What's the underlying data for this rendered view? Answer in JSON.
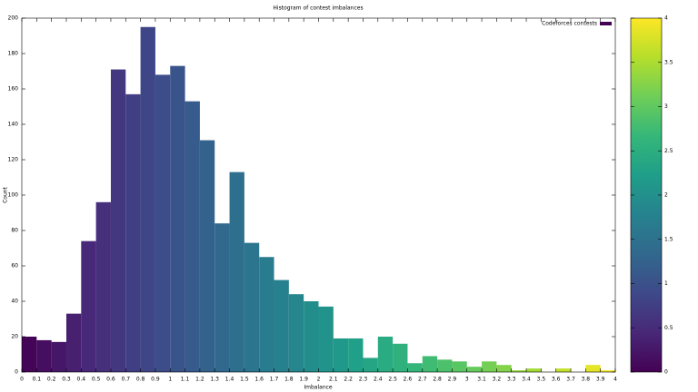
{
  "chart_data": {
    "type": "histogram",
    "title": "Histogram of contest imbalances",
    "x_label": "Imbalance",
    "y_label": "Count",
    "bins": [
      0,
      0.1,
      0.2,
      0.3,
      0.4,
      0.5,
      0.6,
      0.7,
      0.8,
      0.9,
      1,
      1.1,
      1.2,
      1.3,
      1.4,
      1.5,
      1.6,
      1.7,
      1.8,
      1.9,
      2,
      2.1,
      2.2,
      2.3,
      2.4,
      2.5,
      2.6,
      2.7,
      2.8,
      2.9,
      3,
      3.1,
      3.2,
      3.3,
      3.4,
      3.5,
      3.6,
      3.7,
      3.8,
      3.9,
      4
    ],
    "series": [
      {
        "name": "Codeforces contests",
        "color": "#440154",
        "values": [
          20,
          18,
          17,
          33,
          74,
          96,
          171,
          157,
          195,
          168,
          173,
          153,
          131,
          84,
          113,
          73,
          65,
          52,
          44,
          40,
          37,
          19,
          19,
          8,
          20,
          16,
          5,
          9,
          7,
          6,
          3,
          6,
          4,
          1,
          2,
          0,
          2,
          0,
          4,
          1
        ]
      }
    ],
    "xlim": [
      0,
      4
    ],
    "xticks": [
      0,
      0.1,
      0.2,
      0.3,
      0.4,
      0.5,
      0.6,
      0.7,
      0.8,
      0.9,
      1,
      1.1,
      1.2,
      1.3,
      1.4,
      1.5,
      1.6,
      1.7,
      1.8,
      1.9,
      2,
      2.1,
      2.2,
      2.3,
      2.4,
      2.5,
      2.6,
      2.7,
      2.8,
      2.9,
      3,
      3.1,
      3.2,
      3.3,
      3.4,
      3.5,
      3.6,
      3.7,
      3.8,
      3.9,
      4
    ],
    "ylim": [
      0,
      200
    ],
    "yticks": [
      0,
      20,
      40,
      60,
      80,
      100,
      120,
      140,
      160,
      180,
      200
    ],
    "cblim": [
      0,
      4
    ],
    "cbticks": [
      0,
      0.5,
      1,
      1.5,
      2,
      2.5,
      3,
      3.5,
      4
    ],
    "legend": "top-right"
  }
}
